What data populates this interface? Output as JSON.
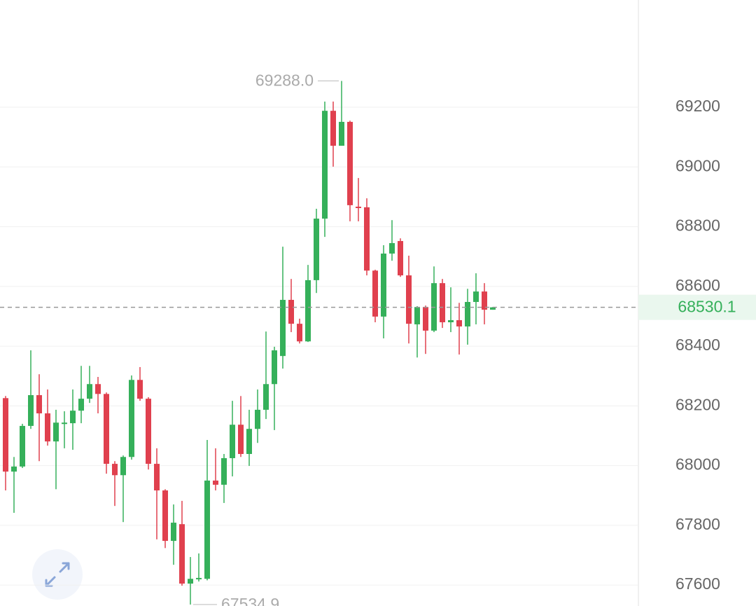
{
  "chart_data": {
    "type": "candlestick",
    "open": [
      68226,
      67980,
      67997,
      68133,
      68236,
      68175,
      68081,
      68142,
      68142,
      68184,
      68224,
      68273,
      68240,
      68006,
      67968,
      68029,
      68287,
      68224,
      68006,
      67917,
      67748,
      67804,
      67605,
      67621,
      67621,
      67950,
      67936,
      68025,
      68137,
      68039,
      68123,
      68187,
      68273,
      68367,
      68555,
      68475,
      68416,
      68621,
      68827,
      69188,
      69071,
      69151,
      68867,
      68865,
      68653,
      68499,
      68710,
      68752,
      68637,
      68473,
      68531,
      68452,
      68611,
      68480,
      68487,
      68466,
      68548,
      68583,
      68522
    ],
    "high": [
      68233,
      68029,
      68140,
      68386,
      68306,
      68255,
      68187,
      68182,
      68255,
      68334,
      68334,
      68297,
      68245,
      68015,
      68034,
      68302,
      68330,
      68229,
      68058,
      67921,
      67870,
      67882,
      67694,
      67706,
      68086,
      68058,
      68039,
      68217,
      68233,
      68187,
      68255,
      68449,
      68398,
      68733,
      68625,
      68492,
      68672,
      68860,
      69219,
      69219,
      69288.0,
      69155,
      68963,
      68895,
      68656,
      68738,
      68822,
      68761,
      68703,
      68534,
      68536,
      68667,
      68625,
      68597,
      68545,
      68592,
      68644,
      68611,
      68531
    ],
    "low": [
      67917,
      67842,
      67992,
      68123,
      68015,
      68067,
      67921,
      68058,
      68053,
      68142,
      68210,
      68175,
      67973,
      67865,
      67811,
      68020,
      68217,
      67987,
      67753,
      67724,
      67668,
      67598,
      67534.9,
      67612,
      67616,
      67917,
      67875,
      67964,
      68029,
      67999,
      68076,
      68156,
      68119,
      68325,
      68447,
      68409,
      68414,
      68578,
      68766,
      69001,
      69071,
      68818,
      68818,
      68637,
      68480,
      68426,
      68686,
      68632,
      68409,
      68362,
      68374,
      68447,
      68461,
      68447,
      68372,
      68405,
      68473,
      68473,
      68522
    ],
    "close": [
      67980,
      67997,
      68133,
      68236,
      68175,
      68081,
      68144,
      68144,
      68184,
      68224,
      68273,
      68240,
      68006,
      67968,
      68029,
      68287,
      68224,
      68006,
      67917,
      67748,
      67809,
      67605,
      67621,
      67624,
      67950,
      67936,
      68025,
      68137,
      68039,
      68123,
      68187,
      68273,
      68386,
      68555,
      68475,
      68416,
      68621,
      68827,
      69188,
      69071,
      69151,
      68872,
      68865,
      68653,
      68499,
      68710,
      68745,
      68637,
      68475,
      68531,
      68452,
      68611,
      68480,
      68487,
      68466,
      68548,
      68583,
      68522,
      68530.1
    ],
    "up_color": "#35b05a",
    "down_color": "#e0404e",
    "ylim": [
      67530,
      69559
    ],
    "yticks": [
      67600,
      67800,
      68000,
      68200,
      68400,
      68600,
      68800,
      69000,
      69200
    ],
    "grid": true,
    "max_label": "69288.0",
    "min_label": "67534.9",
    "last_price": 68530.1
  }
}
